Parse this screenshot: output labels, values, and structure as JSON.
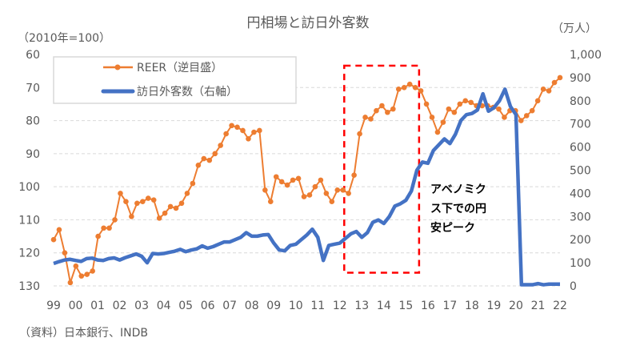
{
  "chart_data": {
    "type": "line",
    "title": "円相場と訪日外客数",
    "left_axis_label": "（2010年=100）",
    "right_axis_label": "（万人）",
    "source": "（資料）日本銀行、INDB",
    "x_tick_labels": [
      "99",
      "00",
      "01",
      "02",
      "03",
      "04",
      "05",
      "06",
      "07",
      "08",
      "09",
      "10",
      "11",
      "12",
      "13",
      "14",
      "15",
      "16",
      "17",
      "18",
      "19",
      "20",
      "21",
      "22"
    ],
    "x_range": [
      1999,
      2022
    ],
    "left_axis": {
      "min": 60,
      "max": 130,
      "reversed": true,
      "ticks": [
        "60",
        "70",
        "80",
        "90",
        "100",
        "110",
        "120",
        "130"
      ]
    },
    "right_axis": {
      "min": 0,
      "max": 1000,
      "ticks": [
        "0",
        "100",
        "200",
        "300",
        "400",
        "500",
        "600",
        "700",
        "800",
        "900",
        "1,000"
      ]
    },
    "grid": true,
    "legend_position": "top-left",
    "series": [
      {
        "name": "REER（逆目盛）",
        "axis": "left",
        "color": "#ED7D31",
        "markers": true,
        "x_start": 1999,
        "x_end": 2022,
        "values": [
          116,
          113,
          120,
          129,
          124,
          127,
          126.5,
          125.5,
          115,
          112.5,
          112.5,
          110,
          102,
          104.5,
          109,
          105,
          104.5,
          103.5,
          104,
          109.5,
          108,
          106,
          106.5,
          105,
          102,
          99,
          93.5,
          91.5,
          92,
          90,
          87.5,
          84,
          81.5,
          82,
          83,
          85.5,
          83.5,
          83,
          101,
          104.5,
          97,
          98.5,
          99.5,
          98,
          97.5,
          103,
          102.5,
          100,
          98,
          102,
          104.5,
          101,
          101,
          102,
          96.5,
          84,
          79,
          79.5,
          77,
          75.5,
          77.5,
          76.5,
          70.5,
          70,
          69,
          70,
          71,
          75,
          79,
          83.5,
          80.5,
          76.5,
          77.5,
          75,
          74,
          74.5,
          75.5,
          75.5,
          75.5,
          76,
          76.5,
          79,
          77,
          77,
          80,
          78.5,
          77,
          74,
          70.5,
          71,
          68.5,
          67
        ]
      },
      {
        "name": "訪日外客数（右軸）",
        "axis": "right",
        "color": "#4472C4",
        "markers": false,
        "x_start": 1999,
        "x_end": 2022,
        "values": [
          97,
          105,
          112,
          115,
          110,
          106,
          118,
          120,
          112,
          110,
          118,
          121,
          112,
          122,
          130,
          138,
          128,
          100,
          140,
          138,
          140,
          145,
          150,
          158,
          148,
          155,
          160,
          173,
          163,
          170,
          180,
          190,
          190,
          200,
          210,
          230,
          215,
          215,
          220,
          222,
          185,
          155,
          152,
          175,
          180,
          200,
          220,
          245,
          210,
          110,
          175,
          180,
          185,
          205,
          225,
          235,
          210,
          230,
          275,
          285,
          270,
          300,
          345,
          355,
          370,
          410,
          500,
          535,
          530,
          585,
          610,
          635,
          615,
          655,
          715,
          740,
          745,
          760,
          830,
          755,
          770,
          800,
          850,
          775,
          740,
          5,
          5,
          5,
          10,
          5,
          8,
          8,
          8
        ]
      }
    ],
    "annotations": [
      {
        "type": "dashed-box",
        "color": "#FF0000",
        "x_range": [
          2012.2,
          2015.6
        ],
        "left_axis_range": [
          63.4,
          126
        ]
      },
      {
        "type": "text",
        "lines": [
          "アベノミク",
          "ス下での円",
          "安ピーク"
        ]
      }
    ]
  }
}
